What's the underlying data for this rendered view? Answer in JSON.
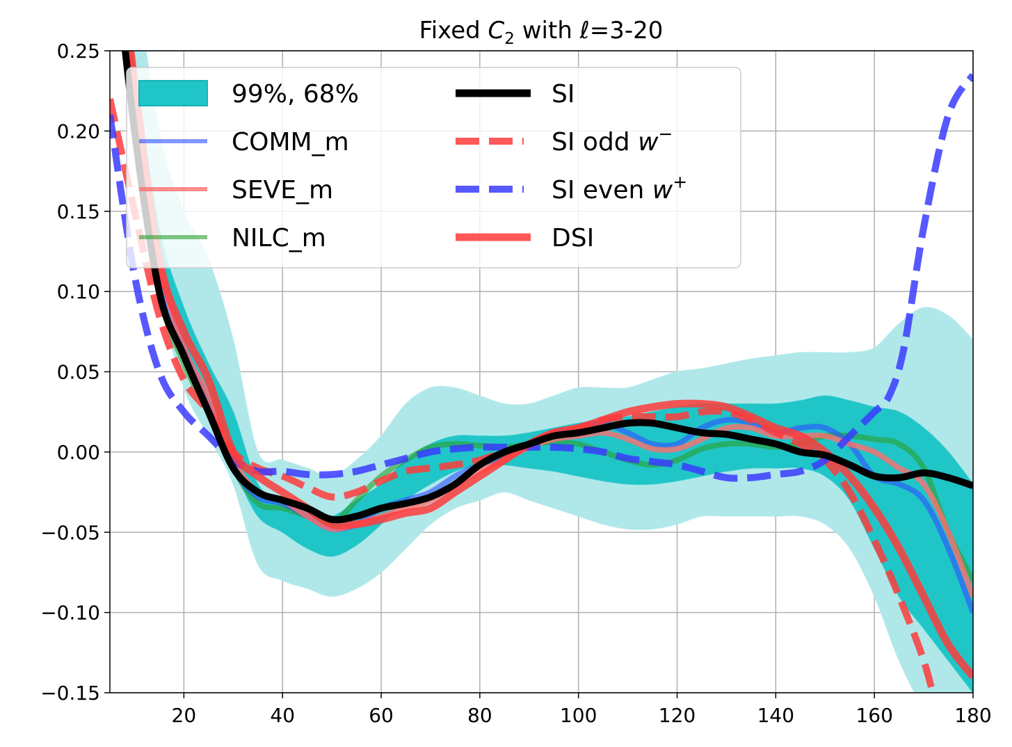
{
  "chart_data": {
    "type": "line",
    "title": "Fixed C₂ with ℓ=3-20",
    "title_main": "Fixed ",
    "title_symbol": "C",
    "title_subscript": "2",
    "title_rest": " with ℓ=3-20",
    "xlabel": "",
    "ylabel": "",
    "xlim": [
      5,
      180
    ],
    "ylim": [
      -0.15,
      0.25
    ],
    "grid": true,
    "legend_position": "top-left",
    "x_ticks": [
      20,
      40,
      60,
      80,
      100,
      120,
      140,
      160,
      180
    ],
    "x_tick_labels": [
      "20",
      "40",
      "60",
      "80",
      "100",
      "120",
      "140",
      "160",
      "180"
    ],
    "y_ticks": [
      -0.15,
      -0.1,
      -0.05,
      0.0,
      0.05,
      0.1,
      0.15,
      0.2,
      0.25
    ],
    "y_tick_labels": [
      "−0.15",
      "−0.10",
      "−0.05",
      "0.00",
      "0.05",
      "0.10",
      "0.15",
      "0.20",
      "0.25"
    ],
    "bands": [
      {
        "name": "99%",
        "color": "#b0e8ea",
        "x": [
          5,
          10,
          15,
          20,
          25,
          30,
          35,
          40,
          45,
          50,
          55,
          60,
          65,
          70,
          75,
          80,
          85,
          90,
          95,
          100,
          105,
          110,
          115,
          120,
          125,
          130,
          135,
          140,
          145,
          150,
          155,
          160,
          165,
          170,
          175,
          180
        ],
        "upper": [
          0.4,
          0.3,
          0.2,
          0.15,
          0.12,
          0.07,
          0.0,
          -0.005,
          -0.01,
          -0.015,
          -0.005,
          0.01,
          0.03,
          0.04,
          0.04,
          0.035,
          0.03,
          0.03,
          0.035,
          0.04,
          0.04,
          0.04,
          0.045,
          0.05,
          0.052,
          0.055,
          0.058,
          0.06,
          0.062,
          0.062,
          0.062,
          0.065,
          0.08,
          0.09,
          0.085,
          0.07
        ],
        "lower": [
          0.3,
          0.2,
          0.1,
          0.04,
          0.01,
          -0.02,
          -0.07,
          -0.08,
          -0.085,
          -0.09,
          -0.085,
          -0.075,
          -0.06,
          -0.045,
          -0.035,
          -0.03,
          -0.025,
          -0.03,
          -0.035,
          -0.04,
          -0.045,
          -0.048,
          -0.048,
          -0.045,
          -0.04,
          -0.04,
          -0.04,
          -0.04,
          -0.04,
          -0.045,
          -0.06,
          -0.09,
          -0.13,
          -0.16,
          -0.18,
          -0.2
        ]
      },
      {
        "name": "68%",
        "color": "#20c5c7",
        "x": [
          5,
          10,
          15,
          20,
          25,
          30,
          35,
          40,
          45,
          50,
          55,
          60,
          65,
          70,
          75,
          80,
          85,
          90,
          95,
          100,
          105,
          110,
          115,
          120,
          125,
          130,
          135,
          140,
          145,
          150,
          155,
          160,
          165,
          170,
          175,
          180
        ],
        "upper": [
          0.34,
          0.24,
          0.14,
          0.09,
          0.055,
          0.025,
          -0.02,
          -0.03,
          -0.035,
          -0.04,
          -0.03,
          -0.02,
          -0.005,
          0.005,
          0.01,
          0.01,
          0.01,
          0.012,
          0.015,
          0.018,
          0.02,
          0.022,
          0.025,
          0.028,
          0.03,
          0.03,
          0.03,
          0.03,
          0.032,
          0.035,
          0.032,
          0.028,
          0.025,
          0.015,
          0.0,
          -0.02
        ],
        "lower": [
          0.32,
          0.22,
          0.12,
          0.06,
          0.02,
          -0.01,
          -0.04,
          -0.05,
          -0.06,
          -0.065,
          -0.058,
          -0.045,
          -0.03,
          -0.02,
          -0.012,
          -0.008,
          -0.008,
          -0.01,
          -0.012,
          -0.015,
          -0.018,
          -0.02,
          -0.02,
          -0.018,
          -0.015,
          -0.012,
          -0.01,
          -0.01,
          -0.01,
          -0.015,
          -0.03,
          -0.06,
          -0.09,
          -0.11,
          -0.13,
          -0.15
        ]
      }
    ],
    "series": [
      {
        "name": "NILC_m",
        "color": "#2ca02c",
        "style": "solid",
        "width": 8,
        "opacity": 0.6,
        "x": [
          5,
          10,
          15,
          20,
          25,
          30,
          35,
          40,
          45,
          50,
          55,
          60,
          65,
          70,
          75,
          80,
          85,
          90,
          95,
          100,
          105,
          110,
          115,
          120,
          125,
          130,
          135,
          140,
          145,
          150,
          155,
          160,
          165,
          170,
          175,
          180
        ],
        "y": [
          0.35,
          0.2,
          0.1,
          0.055,
          0.025,
          -0.01,
          -0.032,
          -0.035,
          -0.04,
          -0.045,
          -0.03,
          -0.015,
          -0.005,
          0.003,
          0.005,
          0.004,
          0.003,
          0.005,
          0.006,
          0.005,
          0.0,
          -0.005,
          -0.008,
          -0.005,
          0.002,
          0.005,
          0.005,
          0.003,
          0.005,
          0.01,
          0.01,
          0.008,
          0.005,
          -0.01,
          -0.05,
          -0.08
        ]
      },
      {
        "name": "COMM_m",
        "color": "#3050ff",
        "style": "solid",
        "width": 8,
        "opacity": 0.6,
        "x": [
          5,
          10,
          15,
          20,
          25,
          30,
          35,
          40,
          45,
          50,
          55,
          60,
          65,
          70,
          75,
          80,
          85,
          90,
          95,
          100,
          105,
          110,
          115,
          120,
          125,
          130,
          135,
          140,
          145,
          150,
          155,
          160,
          165,
          170,
          175,
          180
        ],
        "y": [
          0.34,
          0.21,
          0.11,
          0.065,
          0.03,
          -0.01,
          -0.028,
          -0.032,
          -0.04,
          -0.048,
          -0.045,
          -0.035,
          -0.03,
          -0.025,
          -0.015,
          -0.008,
          -0.002,
          0.005,
          0.012,
          0.015,
          0.018,
          0.012,
          0.005,
          0.005,
          0.015,
          0.02,
          0.018,
          0.012,
          0.015,
          0.015,
          0.005,
          -0.015,
          -0.02,
          -0.03,
          -0.06,
          -0.1
        ]
      },
      {
        "name": "SEVE_m",
        "color": "#ff6e6e",
        "style": "solid",
        "width": 8,
        "opacity": 0.8,
        "x": [
          5,
          10,
          15,
          20,
          25,
          30,
          35,
          40,
          45,
          50,
          55,
          60,
          65,
          70,
          75,
          80,
          85,
          90,
          95,
          100,
          105,
          110,
          115,
          120,
          125,
          130,
          135,
          140,
          145,
          150,
          155,
          160,
          165,
          170,
          175,
          180
        ],
        "y": [
          0.36,
          0.22,
          0.12,
          0.065,
          0.035,
          -0.005,
          -0.025,
          -0.03,
          -0.04,
          -0.048,
          -0.045,
          -0.04,
          -0.035,
          -0.03,
          -0.02,
          -0.012,
          -0.005,
          0.003,
          0.008,
          0.01,
          0.012,
          0.008,
          0.002,
          0.002,
          0.008,
          0.015,
          0.015,
          0.01,
          0.01,
          0.01,
          0.005,
          0.0,
          -0.01,
          -0.02,
          -0.05,
          -0.09
        ]
      },
      {
        "name": "SI odd w⁻",
        "color": "#ff3b3b",
        "style": "dashed",
        "width": 10,
        "opacity": 0.85,
        "x": [
          5,
          10,
          15,
          20,
          25,
          30,
          35,
          40,
          45,
          50,
          55,
          60,
          65,
          70,
          75,
          80,
          85,
          90,
          95,
          100,
          105,
          110,
          115,
          120,
          125,
          130,
          135,
          140,
          145,
          150,
          155,
          160,
          165,
          170,
          173
        ],
        "y": [
          0.22,
          0.15,
          0.085,
          0.045,
          0.025,
          0.0,
          -0.01,
          -0.015,
          -0.022,
          -0.028,
          -0.025,
          -0.018,
          -0.012,
          -0.01,
          -0.008,
          -0.005,
          0.0,
          0.005,
          0.012,
          0.015,
          0.02,
          0.022,
          0.022,
          0.022,
          0.025,
          0.025,
          0.02,
          0.012,
          0.005,
          -0.005,
          -0.025,
          -0.055,
          -0.09,
          -0.13,
          -0.165
        ]
      },
      {
        "name": "SI even w⁺",
        "color": "#3b3bff",
        "style": "dashed",
        "width": 10,
        "opacity": 0.85,
        "x": [
          5,
          10,
          15,
          20,
          25,
          30,
          35,
          40,
          45,
          50,
          55,
          60,
          65,
          70,
          75,
          80,
          85,
          90,
          95,
          100,
          105,
          110,
          115,
          120,
          125,
          130,
          135,
          140,
          145,
          150,
          155,
          160,
          163,
          166,
          170,
          175,
          180
        ],
        "y": [
          0.21,
          0.11,
          0.05,
          0.025,
          0.01,
          -0.005,
          -0.012,
          -0.012,
          -0.014,
          -0.014,
          -0.012,
          -0.008,
          -0.004,
          0.0,
          0.002,
          0.003,
          0.003,
          0.003,
          0.003,
          0.002,
          0.0,
          -0.004,
          -0.006,
          -0.008,
          -0.012,
          -0.016,
          -0.016,
          -0.014,
          -0.012,
          -0.005,
          0.01,
          0.025,
          0.035,
          0.065,
          0.14,
          0.21,
          0.235
        ]
      },
      {
        "name": "DSI",
        "color": "#ff3b3b",
        "style": "solid",
        "width": 11,
        "opacity": 0.85,
        "x": [
          5,
          10,
          15,
          20,
          25,
          30,
          35,
          40,
          45,
          50,
          55,
          60,
          65,
          70,
          75,
          80,
          85,
          90,
          95,
          100,
          105,
          110,
          115,
          120,
          125,
          130,
          135,
          140,
          145,
          150,
          155,
          160,
          165,
          170,
          175,
          180
        ],
        "y": [
          0.36,
          0.23,
          0.12,
          0.075,
          0.045,
          0.0,
          -0.015,
          -0.025,
          -0.035,
          -0.045,
          -0.045,
          -0.042,
          -0.038,
          -0.035,
          -0.025,
          -0.015,
          -0.005,
          0.005,
          0.012,
          0.015,
          0.02,
          0.025,
          0.028,
          0.03,
          0.03,
          0.028,
          0.022,
          0.015,
          0.01,
          0.0,
          -0.015,
          -0.035,
          -0.06,
          -0.09,
          -0.12,
          -0.14
        ]
      },
      {
        "name": "SI",
        "color": "#000000",
        "style": "solid",
        "width": 10,
        "opacity": 1,
        "x": [
          5,
          10,
          15,
          20,
          25,
          30,
          35,
          40,
          45,
          50,
          55,
          60,
          65,
          70,
          75,
          80,
          85,
          90,
          95,
          100,
          105,
          110,
          115,
          120,
          125,
          130,
          135,
          140,
          145,
          150,
          155,
          160,
          165,
          170,
          175,
          180
        ],
        "y": [
          0.34,
          0.2,
          0.1,
          0.06,
          0.025,
          -0.01,
          -0.025,
          -0.03,
          -0.035,
          -0.042,
          -0.04,
          -0.035,
          -0.032,
          -0.028,
          -0.02,
          -0.008,
          0.0,
          0.005,
          0.01,
          0.012,
          0.015,
          0.018,
          0.018,
          0.015,
          0.012,
          0.011,
          0.008,
          0.005,
          0.0,
          -0.002,
          -0.008,
          -0.015,
          -0.016,
          -0.013,
          -0.016,
          -0.021
        ]
      }
    ],
    "legend": {
      "col1": [
        {
          "label": "99%, 68%",
          "kind": "patch",
          "color": "#20c5c7"
        },
        {
          "label": "COMM_m",
          "kind": "line",
          "color": "#3050ff",
          "style": "solid",
          "opacity": 0.6
        },
        {
          "label": "SEVE_m",
          "kind": "line",
          "color": "#ff6e6e",
          "style": "solid",
          "opacity": 0.8
        },
        {
          "label": "NILC_m",
          "kind": "line",
          "color": "#2ca02c",
          "style": "solid",
          "opacity": 0.6
        }
      ],
      "col2": [
        {
          "label": "SI",
          "kind": "line",
          "color": "#000000",
          "style": "solid",
          "opacity": 1,
          "wide": true
        },
        {
          "label": "SI odd ",
          "math": "w",
          "sup": "−",
          "kind": "line",
          "color": "#ff3b3b",
          "style": "dashed",
          "opacity": 0.85
        },
        {
          "label": "SI even ",
          "math": "w",
          "sup": "+",
          "kind": "line",
          "color": "#3b3bff",
          "style": "dashed",
          "opacity": 0.85
        },
        {
          "label": "DSI",
          "kind": "line",
          "color": "#ff3b3b",
          "style": "solid",
          "opacity": 0.85,
          "wide": true
        }
      ]
    }
  }
}
